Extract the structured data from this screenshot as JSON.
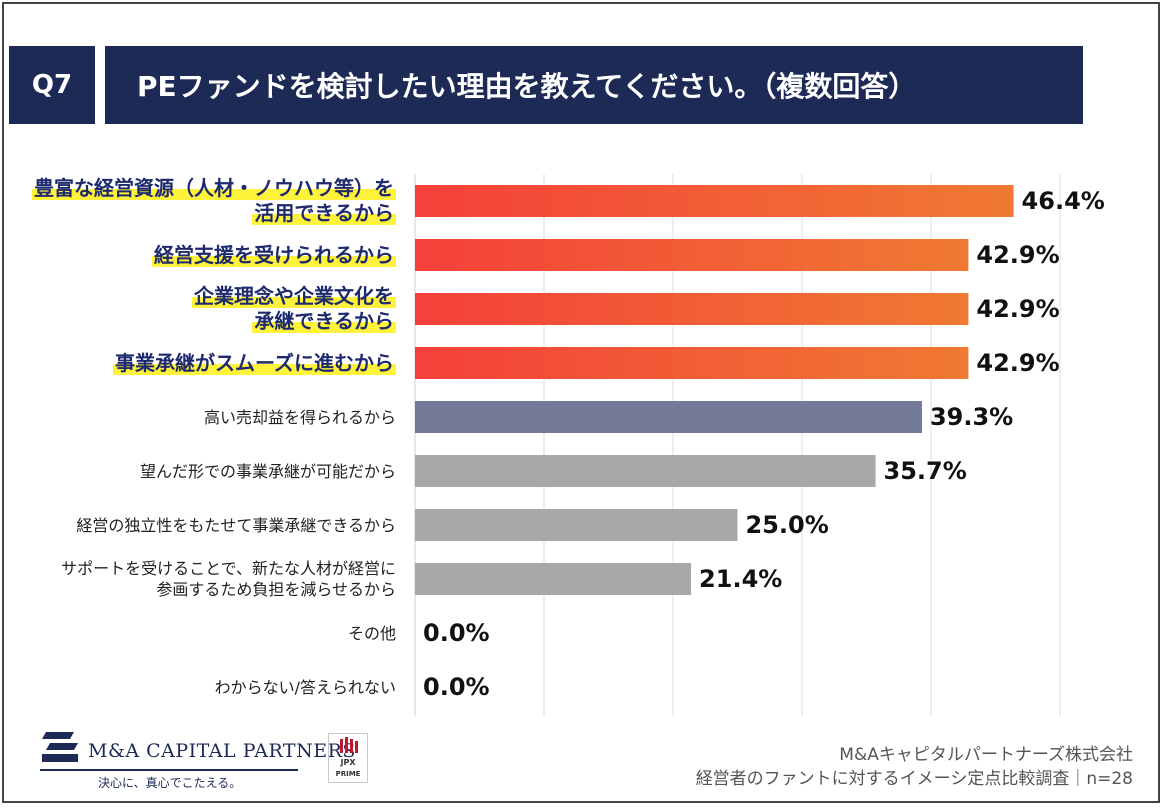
{
  "question": {
    "number": "Q7",
    "title": "PEファンドを検討したい理由を教えてください。（複数回答）"
  },
  "chart_data": {
    "type": "bar",
    "orientation": "horizontal",
    "title": "PEファンドを検討したい理由を教えてください。（複数回答）",
    "unit": "%",
    "xlim": [
      0,
      50
    ],
    "grid": true,
    "categories": [
      {
        "lines": [
          "豊富な経営資源（人材・ノウハウ等）を",
          "活用できるから"
        ],
        "value": 46.4,
        "label": "46.4%",
        "highlight": true,
        "color": "#f0673a"
      },
      {
        "lines": [
          "経営支援を受けられるから"
        ],
        "value": 42.9,
        "label": "42.9%",
        "highlight": true,
        "color": "#f0673a"
      },
      {
        "lines": [
          "企業理念や企業文化を",
          "承継できるから"
        ],
        "value": 42.9,
        "label": "42.9%",
        "highlight": true,
        "color": "#f0673a"
      },
      {
        "lines": [
          "事業承継がスムーズに進むから"
        ],
        "value": 42.9,
        "label": "42.9%",
        "highlight": true,
        "color": "#f0673a"
      },
      {
        "lines": [
          "高い売却益を得られるから"
        ],
        "value": 39.3,
        "label": "39.3%",
        "highlight": false,
        "color": "#737b98"
      },
      {
        "lines": [
          "望んだ形での事業承継が可能だから"
        ],
        "value": 35.7,
        "label": "35.7%",
        "highlight": false,
        "color": "#a8a8a8"
      },
      {
        "lines": [
          "経営の独立性をもたせて事業承継できるから"
        ],
        "value": 25.0,
        "label": "25.0%",
        "highlight": false,
        "color": "#a8a8a8"
      },
      {
        "lines": [
          "サポートを受けることで、新たな人材が経営に",
          "参画するため負担を減らせるから"
        ],
        "value": 21.4,
        "label": "21.4%",
        "highlight": false,
        "color": "#a8a8a8"
      },
      {
        "lines": [
          "その他"
        ],
        "value": 0.0,
        "label": "0.0%",
        "highlight": false,
        "color": "#a8a8a8"
      },
      {
        "lines": [
          "わからない/答えられない"
        ],
        "value": 0.0,
        "label": "0.0%",
        "highlight": false,
        "color": "#a8a8a8"
      }
    ]
  },
  "footer": {
    "logo_name": "M&A CAPITAL PARTNERS",
    "logo_tagline": "決心に、真心でこたえる。",
    "jpx_top": "JPX",
    "jpx_bottom": "PRIME",
    "company": "M&Aキャピタルパートナーズ株式会社",
    "survey": "経営者のファントに対するイメーシ定点比較調査｜n=28"
  }
}
